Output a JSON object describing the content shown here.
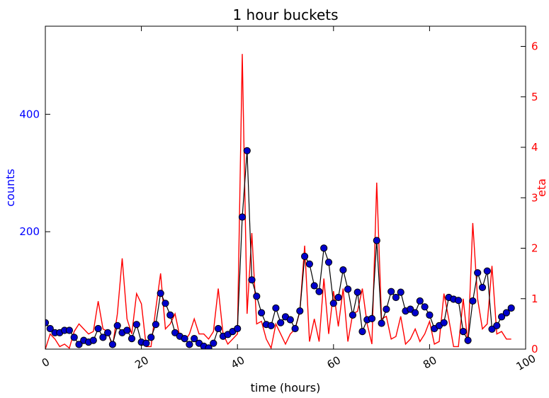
{
  "chart_data": {
    "type": "line",
    "title": "1 hour buckets",
    "xlabel": "time (hours)",
    "ylabel_left": "counts",
    "ylabel_right": "eta",
    "xlim": [
      0,
      100
    ],
    "ylim_left": [
      0,
      550
    ],
    "ylim_right": [
      0,
      6.4
    ],
    "x_ticks": [
      "0",
      "20",
      "40",
      "60",
      "80",
      "100"
    ],
    "y_left_ticks": [
      "200",
      "400"
    ],
    "y_right_ticks": [
      "0",
      "1",
      "2",
      "3",
      "4",
      "5",
      "6"
    ],
    "grid": false,
    "series": [
      {
        "axis": "left",
        "kind": "line+markers",
        "x": [
          0,
          1,
          2,
          3,
          4,
          5,
          6,
          7,
          8,
          9,
          10,
          11,
          12,
          13,
          14,
          15,
          16,
          17,
          18,
          19,
          20,
          21,
          22,
          23,
          24,
          25,
          26,
          27,
          28,
          29,
          30,
          31,
          32,
          33,
          34,
          35,
          36,
          37,
          38,
          39,
          40,
          41,
          42,
          43,
          44,
          45,
          46,
          47,
          48,
          49,
          50,
          51,
          52,
          53,
          54,
          55,
          56,
          57,
          58,
          59,
          60,
          61,
          62,
          63,
          64,
          65,
          66,
          67,
          68,
          69,
          70,
          71,
          72,
          73,
          74,
          75,
          76,
          77,
          78,
          79,
          80,
          81,
          82,
          83,
          84,
          85,
          86,
          87,
          88,
          89,
          90,
          91,
          92,
          93,
          94,
          95,
          96,
          97
        ],
        "values": [
          45,
          35,
          28,
          28,
          32,
          32,
          20,
          8,
          15,
          12,
          15,
          35,
          20,
          28,
          8,
          40,
          28,
          32,
          18,
          42,
          12,
          10,
          20,
          42,
          95,
          78,
          58,
          28,
          22,
          18,
          8,
          18,
          10,
          5,
          2,
          10,
          35,
          22,
          25,
          30,
          35,
          225,
          338,
          118,
          90,
          62,
          42,
          40,
          70,
          45,
          55,
          50,
          35,
          65,
          158,
          145,
          108,
          98,
          172,
          148,
          78,
          88,
          135,
          102,
          58,
          97,
          30,
          50,
          52,
          185,
          44,
          68,
          98,
          88,
          97,
          65,
          68,
          62,
          82,
          72,
          58,
          35,
          40,
          45,
          88,
          85,
          83,
          30,
          15,
          82,
          130,
          105,
          133,
          34,
          40,
          55,
          62,
          70
        ]
      },
      {
        "axis": "right",
        "kind": "line",
        "x": [
          0,
          1,
          2,
          3,
          4,
          5,
          6,
          7,
          8,
          9,
          10,
          11,
          12,
          13,
          14,
          15,
          16,
          17,
          18,
          19,
          20,
          21,
          22,
          23,
          24,
          25,
          26,
          27,
          28,
          29,
          30,
          31,
          32,
          33,
          34,
          35,
          36,
          37,
          38,
          39,
          40,
          41,
          42,
          43,
          44,
          45,
          46,
          47,
          48,
          49,
          50,
          51,
          52,
          53,
          54,
          55,
          56,
          57,
          58,
          59,
          60,
          61,
          62,
          63,
          64,
          65,
          66,
          67,
          68,
          69,
          70,
          71,
          72,
          73,
          74,
          75,
          76,
          77,
          78,
          79,
          80,
          81,
          82,
          83,
          84,
          85,
          86,
          87,
          88,
          89,
          90,
          91,
          92,
          93,
          94,
          95,
          96,
          97
        ],
        "values": [
          0.0,
          0.3,
          0.2,
          0.05,
          0.1,
          0.02,
          0.35,
          0.5,
          0.4,
          0.3,
          0.35,
          0.95,
          0.4,
          0.35,
          0.05,
          0.7,
          1.8,
          0.6,
          0.3,
          1.1,
          0.9,
          0.05,
          0.05,
          0.8,
          1.5,
          0.4,
          0.5,
          0.7,
          0.25,
          0.15,
          0.3,
          0.6,
          0.3,
          0.3,
          0.2,
          0.35,
          1.2,
          0.3,
          0.1,
          0.2,
          0.3,
          5.85,
          0.7,
          2.3,
          0.5,
          0.55,
          0.2,
          0.02,
          0.5,
          0.3,
          0.1,
          0.3,
          0.4,
          0.75,
          2.05,
          0.15,
          0.6,
          0.15,
          1.4,
          0.3,
          1.15,
          0.45,
          1.2,
          0.15,
          0.7,
          0.75,
          1.2,
          0.5,
          0.1,
          3.3,
          0.6,
          0.65,
          0.2,
          0.25,
          0.65,
          0.1,
          0.2,
          0.4,
          0.15,
          0.3,
          0.55,
          0.1,
          0.15,
          1.1,
          0.6,
          0.05,
          0.05,
          1.0,
          0.1,
          2.5,
          1.0,
          0.4,
          0.5,
          1.65,
          0.3,
          0.35,
          0.2,
          0.2
        ]
      }
    ],
    "colors": {
      "left_axis": "#0000ff",
      "right_axis": "#ff0000",
      "count_line": "#000000",
      "marker_fill": "#0000cc",
      "marker_edge": "#000000",
      "eta_line": "#ff0000"
    }
  }
}
